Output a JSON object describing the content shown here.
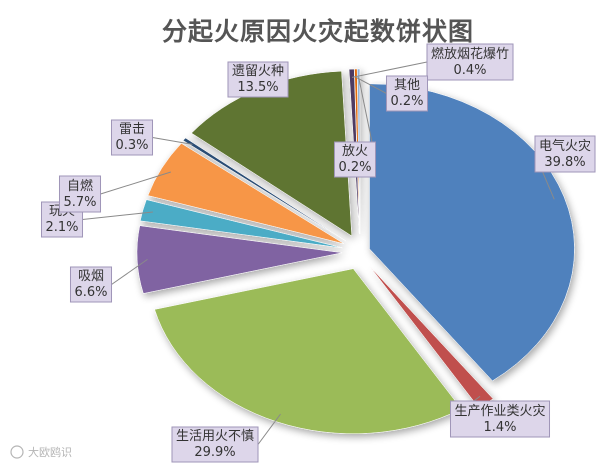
{
  "chart_data": {
    "type": "pie",
    "title": "分起火原因火灾起数饼状图",
    "slices": [
      {
        "label": "电气火灾",
        "value": 39.8,
        "text": "39.8%",
        "color": "#4f81bd",
        "explode": 1
      },
      {
        "label": "生产作业类火灾",
        "value": 1.4,
        "text": "1.4%",
        "color": "#c0504d",
        "explode": 2
      },
      {
        "label": "生活用火不慎",
        "value": 29.9,
        "text": "29.9%",
        "color": "#9bbb59",
        "explode": 2
      },
      {
        "label": "吸烟",
        "value": 6.6,
        "text": "6.6%",
        "color": "#8064a2",
        "explode": 2
      },
      {
        "label": "玩火",
        "value": 2.1,
        "text": "2.1%",
        "color": "#4bacc6",
        "explode": 2
      },
      {
        "label": "自燃",
        "value": 5.7,
        "text": "5.7%",
        "color": "#f79646",
        "explode": 2
      },
      {
        "label": "雷击",
        "value": 0.3,
        "text": "0.3%",
        "color": "#2c4d75",
        "explode": 2
      },
      {
        "label": "遗留火种",
        "value": 13.5,
        "text": "13.5%",
        "color": "#5f7530",
        "explode": 2
      },
      {
        "label": "燃放烟花爆竹",
        "value": 0.4,
        "text": "0.4%",
        "color": "#4d3b62",
        "explode": 2
      },
      {
        "label": "其他",
        "value": 0.2,
        "text": "0.2%",
        "color": "#e36c0a",
        "explode": 2
      },
      {
        "label": "放火",
        "value": 0.2,
        "text": "0.2%",
        "color": "#95b3d7",
        "explode": 2
      }
    ]
  },
  "watermark": "大欧鸥识",
  "watermark_icon": "camera-icon"
}
